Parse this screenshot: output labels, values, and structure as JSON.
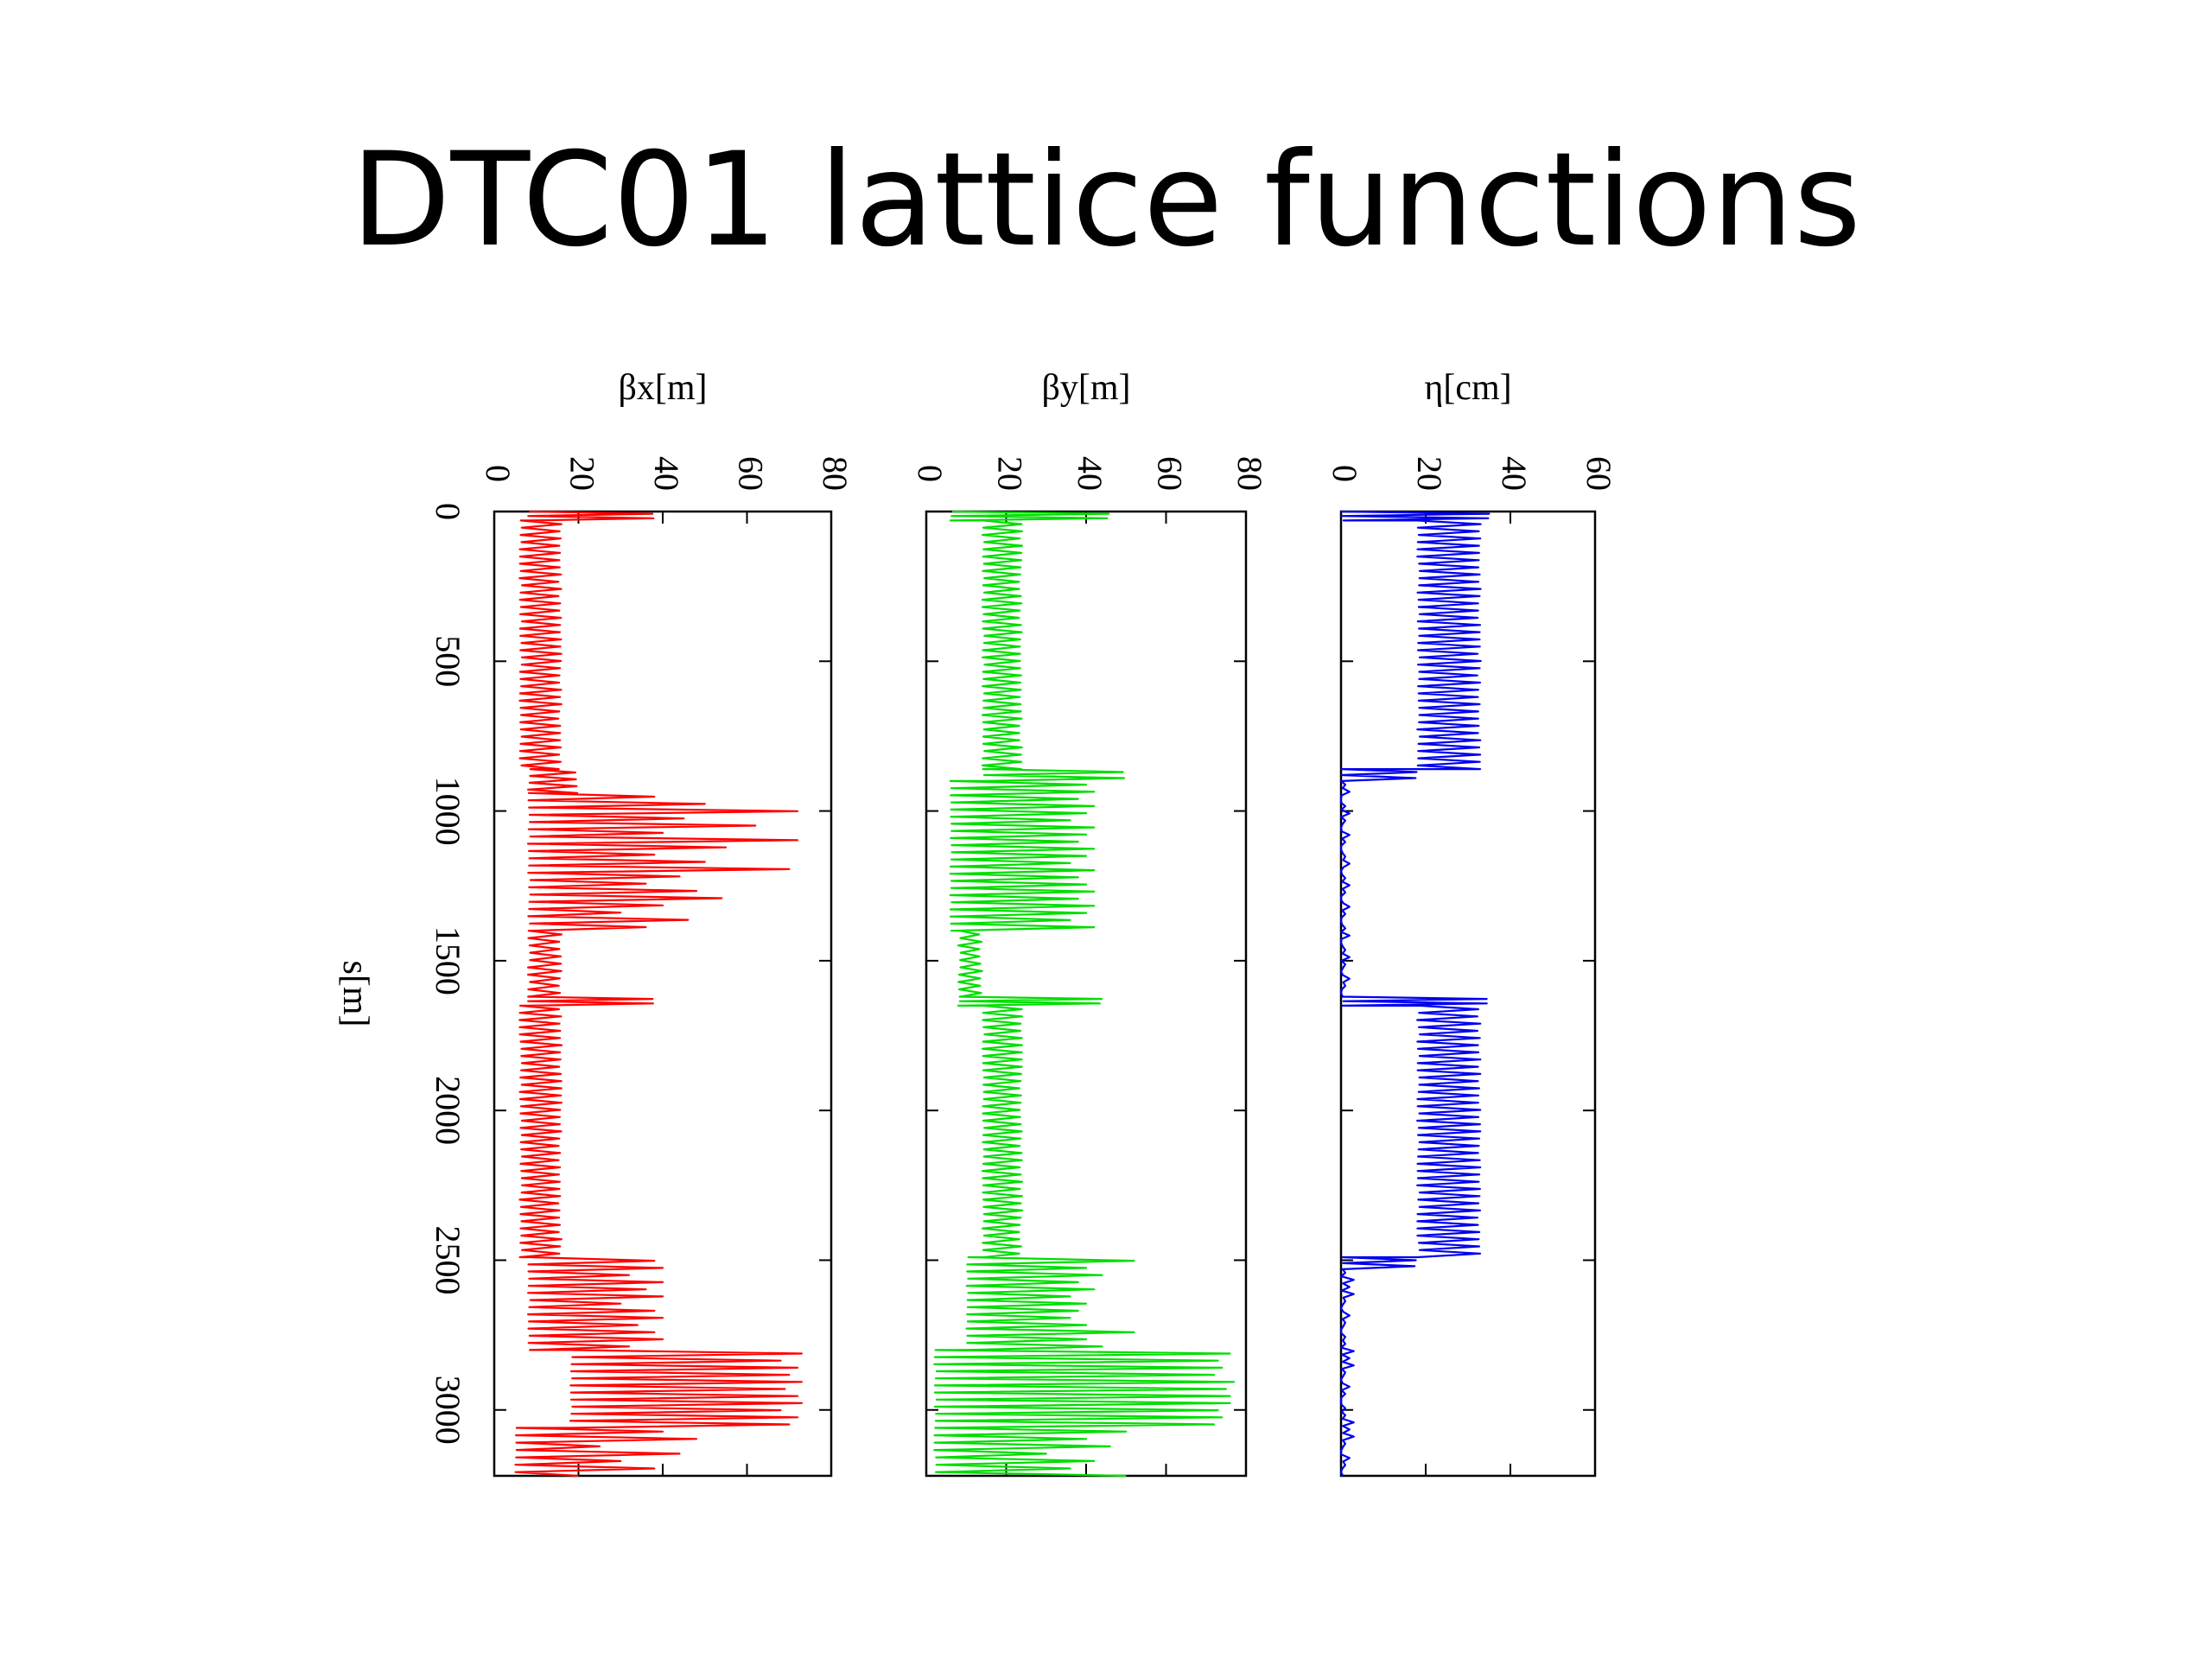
{
  "slide": {
    "title": "DTC01 lattice functions"
  },
  "chart_data": {
    "type": "line",
    "orientation": "rotated-90",
    "shared_axis": {
      "label": "s[m]",
      "range": [
        0,
        3220
      ],
      "ticks": [
        0,
        500,
        1000,
        1500,
        2000,
        2500,
        3000
      ]
    },
    "panels": [
      {
        "label": "βx[m]",
        "color": "#ff0000",
        "range": [
          0,
          80
        ],
        "ticks": [
          0,
          20,
          40,
          60,
          80
        ],
        "segments": [
          {
            "s": [
              0,
              30
            ],
            "low": 8,
            "high": 38
          },
          {
            "s": [
              30,
              860
            ],
            "low": 6,
            "high": 16
          },
          {
            "s": [
              860,
              940
            ],
            "low": 8,
            "high": 20
          },
          {
            "s": [
              940,
              1400
            ],
            "low": 8,
            "high": 72,
            "pattern": [
              38,
              50,
              72,
              45,
              62,
              40,
              72,
              55,
              38,
              50,
              70,
              44,
              36,
              48,
              54,
              40,
              30,
              46,
              36,
              28
            ]
          },
          {
            "s": [
              1400,
              1620
            ],
            "low": 8,
            "high": 16
          },
          {
            "s": [
              1620,
              1650
            ],
            "low": 8,
            "high": 38
          },
          {
            "s": [
              1650,
              2490
            ],
            "low": 6,
            "high": 16
          },
          {
            "s": [
              2490,
              2800
            ],
            "low": 8,
            "high": 40,
            "pattern": [
              38,
              40,
              32,
              40,
              36,
              40,
              30,
              38,
              40,
              34
            ]
          },
          {
            "s": [
              2800,
              3060
            ],
            "low": 18,
            "high": 73,
            "pattern": [
              73,
              68,
              72,
              70,
              73,
              69,
              72
            ]
          },
          {
            "s": [
              3060,
              3220
            ],
            "low": 5,
            "high": 48,
            "pattern": [
              40,
              48,
              25,
              44,
              30,
              38,
              20,
              34
            ]
          }
        ]
      },
      {
        "label": "βy[m]",
        "color": "#00dd00",
        "range": [
          0,
          80
        ],
        "ticks": [
          0,
          20,
          40,
          60,
          80
        ],
        "segments": [
          {
            "s": [
              0,
              30
            ],
            "low": 6,
            "high": 46
          },
          {
            "s": [
              30,
              860
            ],
            "low": 14,
            "high": 24
          },
          {
            "s": [
              860,
              900
            ],
            "low": 14,
            "high": 50
          },
          {
            "s": [
              900,
              1400
            ],
            "low": 6,
            "high": 42,
            "pattern": [
              40,
              42,
              38,
              42,
              40,
              36,
              42,
              40,
              38,
              42,
              40,
              36,
              42,
              38
            ]
          },
          {
            "s": [
              1400,
              1620
            ],
            "low": 8,
            "high": 14
          },
          {
            "s": [
              1620,
              1650
            ],
            "low": 8,
            "high": 44
          },
          {
            "s": [
              1650,
              2490
            ],
            "low": 14,
            "high": 24
          },
          {
            "s": [
              2490,
              2800
            ],
            "low": 10,
            "high": 52,
            "pattern": [
              52,
              40,
              44,
              38,
              42,
              36,
              40,
              38,
              36,
              40
            ]
          },
          {
            "s": [
              2800,
              3060
            ],
            "low": 2,
            "high": 77,
            "pattern": [
              76,
              73,
              74,
              72,
              77,
              75,
              76
            ]
          },
          {
            "s": [
              3060,
              3220
            ],
            "low": 2,
            "high": 50,
            "pattern": [
              50,
              40,
              46,
              30,
              42,
              36
            ]
          }
        ]
      },
      {
        "label": "η[cm]",
        "color": "#0000ee",
        "range": [
          0,
          60
        ],
        "ticks": [
          0,
          20,
          40,
          60
        ],
        "segments": [
          {
            "s": [
              0,
              30
            ],
            "low": 0,
            "high": 35
          },
          {
            "s": [
              30,
              860
            ],
            "low": 18,
            "high": 33
          },
          {
            "s": [
              860,
              900
            ],
            "low": 0,
            "high": 18
          },
          {
            "s": [
              900,
              1620
            ],
            "low": 0,
            "high": 2,
            "pattern": [
              1,
              2,
              0,
              1,
              2,
              1,
              0,
              2,
              1,
              0
            ]
          },
          {
            "s": [
              1620,
              1650
            ],
            "low": 0,
            "high": 35
          },
          {
            "s": [
              1650,
              2490
            ],
            "low": 18,
            "high": 33
          },
          {
            "s": [
              2490,
              2530
            ],
            "low": 0,
            "high": 18
          },
          {
            "s": [
              2530,
              3220
            ],
            "low": 0,
            "high": 3,
            "pattern": [
              1,
              3,
              2,
              3,
              1,
              0,
              2,
              1,
              0,
              1
            ]
          }
        ]
      }
    ]
  }
}
